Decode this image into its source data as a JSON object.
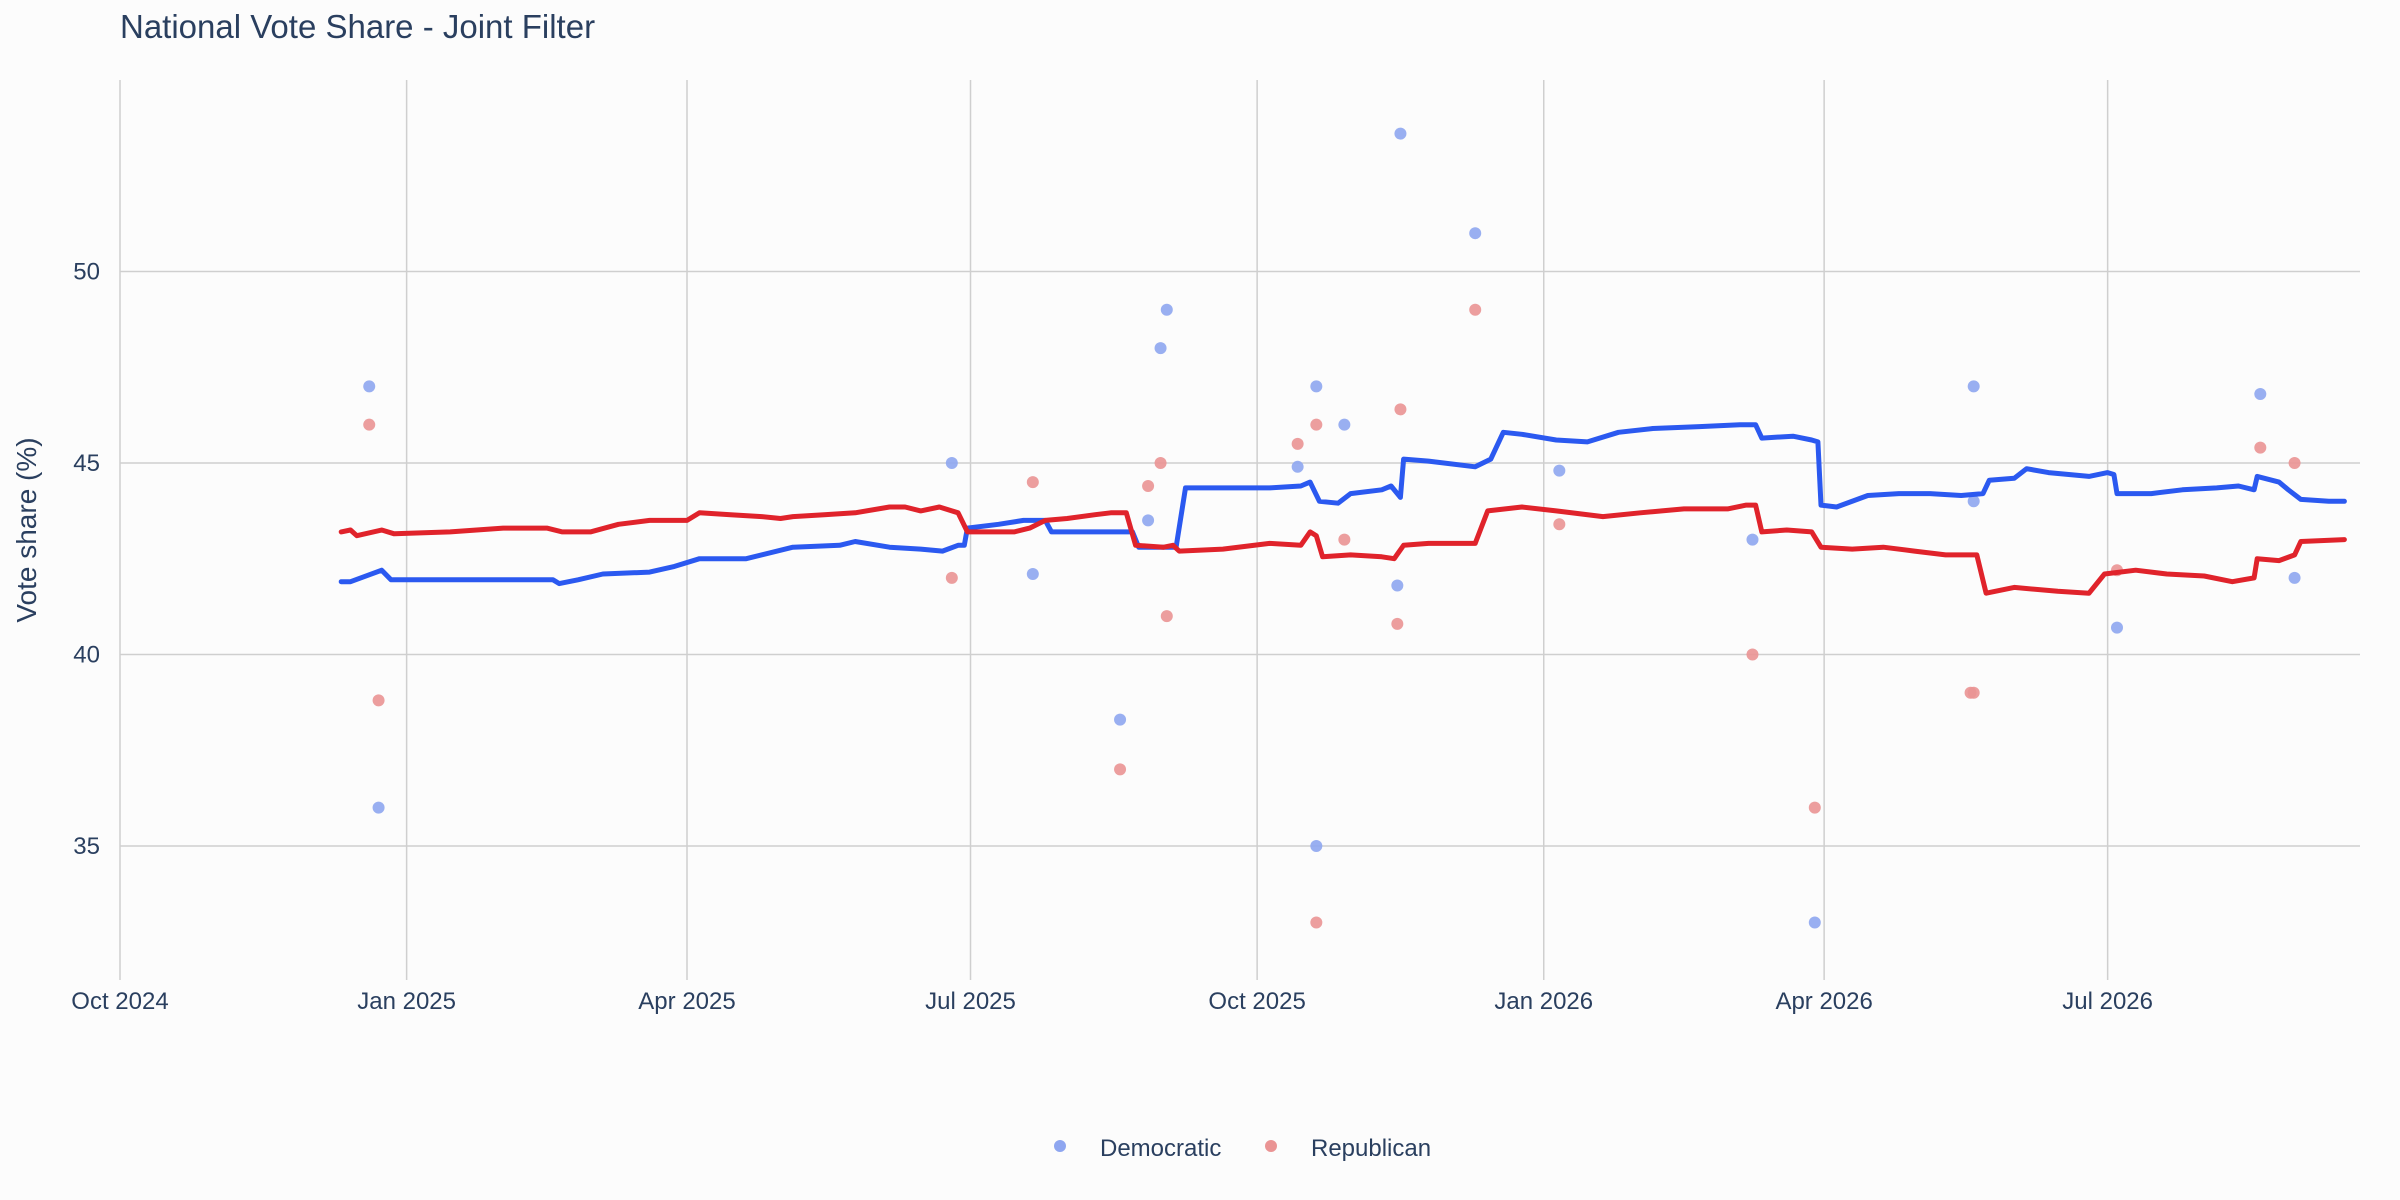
{
  "chart_data": {
    "type": "line",
    "title": "National Vote Share - Joint Filter",
    "xlabel": "",
    "ylabel": "Vote share (%)",
    "xlim": [
      "2024-10-01",
      "2026-09-20"
    ],
    "ylim": [
      31.5,
      55
    ],
    "grid": true,
    "legend_position": "bottom-center",
    "x_ticks": [
      {
        "date": "2024-10-01",
        "label": "Oct 2024"
      },
      {
        "date": "2025-01-01",
        "label": "Jan 2025"
      },
      {
        "date": "2025-04-01",
        "label": "Apr 2025"
      },
      {
        "date": "2025-07-01",
        "label": "Jul 2025"
      },
      {
        "date": "2025-10-01",
        "label": "Oct 2025"
      },
      {
        "date": "2026-01-01",
        "label": "Jan 2026"
      },
      {
        "date": "2026-04-01",
        "label": "Apr 2026"
      },
      {
        "date": "2026-07-01",
        "label": "Jul 2026"
      }
    ],
    "y_ticks": [
      35,
      40,
      45,
      50
    ],
    "series": [
      {
        "name": "Democratic",
        "color": "#2b59f0",
        "marker_color": "#8ea6f0",
        "trend": [
          [
            "2024-12-11",
            41.9
          ],
          [
            "2024-12-14",
            41.9
          ],
          [
            "2024-12-24",
            42.2
          ],
          [
            "2024-12-27",
            41.95
          ],
          [
            "2025-01-15",
            41.95
          ],
          [
            "2025-02-01",
            41.95
          ],
          [
            "2025-02-17",
            41.95
          ],
          [
            "2025-02-19",
            41.85
          ],
          [
            "2025-02-25",
            41.95
          ],
          [
            "2025-03-05",
            42.1
          ],
          [
            "2025-03-20",
            42.15
          ],
          [
            "2025-03-28",
            42.3
          ],
          [
            "2025-04-05",
            42.5
          ],
          [
            "2025-04-20",
            42.5
          ],
          [
            "2025-05-05",
            42.8
          ],
          [
            "2025-05-20",
            42.85
          ],
          [
            "2025-05-25",
            42.95
          ],
          [
            "2025-06-05",
            42.8
          ],
          [
            "2025-06-15",
            42.75
          ],
          [
            "2025-06-22",
            42.7
          ],
          [
            "2025-06-27",
            42.85
          ],
          [
            "2025-06-29",
            42.85
          ],
          [
            "2025-06-30",
            43.3
          ],
          [
            "2025-07-10",
            43.4
          ],
          [
            "2025-07-18",
            43.5
          ],
          [
            "2025-07-25",
            43.5
          ],
          [
            "2025-07-27",
            43.2
          ],
          [
            "2025-08-05",
            43.2
          ],
          [
            "2025-08-15",
            43.2
          ],
          [
            "2025-08-22",
            43.2
          ],
          [
            "2025-08-24",
            42.8
          ],
          [
            "2025-09-01",
            42.8
          ],
          [
            "2025-09-05",
            42.8
          ],
          [
            "2025-09-08",
            44.35
          ],
          [
            "2025-09-20",
            44.35
          ],
          [
            "2025-10-05",
            44.35
          ],
          [
            "2025-10-15",
            44.4
          ],
          [
            "2025-10-18",
            44.5
          ],
          [
            "2025-10-21",
            44.0
          ],
          [
            "2025-10-27",
            43.95
          ],
          [
            "2025-10-31",
            44.2
          ],
          [
            "2025-11-10",
            44.3
          ],
          [
            "2025-11-13",
            44.4
          ],
          [
            "2025-11-16",
            44.1
          ],
          [
            "2025-11-17",
            45.1
          ],
          [
            "2025-11-25",
            45.05
          ],
          [
            "2025-12-10",
            44.9
          ],
          [
            "2025-12-15",
            45.1
          ],
          [
            "2025-12-19",
            45.8
          ],
          [
            "2025-12-25",
            45.75
          ],
          [
            "2026-01-05",
            45.6
          ],
          [
            "2026-01-15",
            45.55
          ],
          [
            "2026-01-25",
            45.8
          ],
          [
            "2026-02-05",
            45.9
          ],
          [
            "2026-02-20",
            45.95
          ],
          [
            "2026-03-05",
            46.0
          ],
          [
            "2026-03-10",
            46.0
          ],
          [
            "2026-03-12",
            45.65
          ],
          [
            "2026-03-22",
            45.7
          ],
          [
            "2026-03-28",
            45.6
          ],
          [
            "2026-03-30",
            45.55
          ],
          [
            "2026-03-31",
            43.9
          ],
          [
            "2026-04-05",
            43.85
          ],
          [
            "2026-04-15",
            44.15
          ],
          [
            "2026-04-25",
            44.2
          ],
          [
            "2026-05-05",
            44.2
          ],
          [
            "2026-05-15",
            44.15
          ],
          [
            "2026-05-22",
            44.2
          ],
          [
            "2026-05-24",
            44.55
          ],
          [
            "2026-06-01",
            44.6
          ],
          [
            "2026-06-05",
            44.85
          ],
          [
            "2026-06-12",
            44.75
          ],
          [
            "2026-06-25",
            44.65
          ],
          [
            "2026-07-01",
            44.75
          ],
          [
            "2026-07-03",
            44.7
          ],
          [
            "2026-07-04",
            44.2
          ],
          [
            "2026-07-15",
            44.2
          ],
          [
            "2026-07-25",
            44.3
          ],
          [
            "2026-08-05",
            44.35
          ],
          [
            "2026-08-12",
            44.4
          ],
          [
            "2026-08-17",
            44.3
          ],
          [
            "2026-08-18",
            44.65
          ],
          [
            "2026-08-25",
            44.5
          ],
          [
            "2026-08-28",
            44.3
          ],
          [
            "2026-09-01",
            44.05
          ],
          [
            "2026-09-10",
            44.0
          ],
          [
            "2026-09-15",
            44.0
          ]
        ],
        "polls": [
          [
            "2024-12-20",
            47.0
          ],
          [
            "2024-12-23",
            36.0
          ],
          [
            "2025-06-25",
            45.0
          ],
          [
            "2025-07-21",
            42.1
          ],
          [
            "2025-08-18",
            38.3
          ],
          [
            "2025-08-27",
            43.5
          ],
          [
            "2025-08-31",
            48.0
          ],
          [
            "2025-09-02",
            49.0
          ],
          [
            "2025-10-14",
            44.9
          ],
          [
            "2025-10-20",
            47.0
          ],
          [
            "2025-10-20",
            35.0
          ],
          [
            "2025-10-29",
            46.0
          ],
          [
            "2025-11-15",
            41.8
          ],
          [
            "2025-11-16",
            53.6
          ],
          [
            "2025-12-10",
            51.0
          ],
          [
            "2026-01-06",
            44.8
          ],
          [
            "2026-03-09",
            43.0
          ],
          [
            "2026-03-29",
            33.0
          ],
          [
            "2026-05-19",
            47.0
          ],
          [
            "2026-05-19",
            44.0
          ],
          [
            "2026-07-04",
            40.7
          ],
          [
            "2026-08-19",
            46.8
          ],
          [
            "2026-08-30",
            42.0
          ]
        ]
      },
      {
        "name": "Republican",
        "color": "#e0232b",
        "marker_color": "#ea9494",
        "trend": [
          [
            "2024-12-11",
            43.2
          ],
          [
            "2024-12-14",
            43.25
          ],
          [
            "2024-12-16",
            43.1
          ],
          [
            "2024-12-24",
            43.25
          ],
          [
            "2024-12-28",
            43.15
          ],
          [
            "2025-01-15",
            43.2
          ],
          [
            "2025-02-01",
            43.3
          ],
          [
            "2025-02-15",
            43.3
          ],
          [
            "2025-02-20",
            43.2
          ],
          [
            "2025-03-01",
            43.2
          ],
          [
            "2025-03-10",
            43.4
          ],
          [
            "2025-03-20",
            43.5
          ],
          [
            "2025-04-01",
            43.5
          ],
          [
            "2025-04-05",
            43.7
          ],
          [
            "2025-04-15",
            43.65
          ],
          [
            "2025-04-25",
            43.6
          ],
          [
            "2025-05-01",
            43.55
          ],
          [
            "2025-05-05",
            43.6
          ],
          [
            "2025-05-15",
            43.65
          ],
          [
            "2025-05-25",
            43.7
          ],
          [
            "2025-06-05",
            43.85
          ],
          [
            "2025-06-10",
            43.85
          ],
          [
            "2025-06-15",
            43.75
          ],
          [
            "2025-06-21",
            43.85
          ],
          [
            "2025-06-27",
            43.7
          ],
          [
            "2025-06-30",
            43.2
          ],
          [
            "2025-07-10",
            43.2
          ],
          [
            "2025-07-15",
            43.2
          ],
          [
            "2025-07-20",
            43.3
          ],
          [
            "2025-07-25",
            43.5
          ],
          [
            "2025-08-01",
            43.55
          ],
          [
            "2025-08-10",
            43.65
          ],
          [
            "2025-08-15",
            43.7
          ],
          [
            "2025-08-20",
            43.7
          ],
          [
            "2025-08-23",
            42.85
          ],
          [
            "2025-09-01",
            42.8
          ],
          [
            "2025-09-04",
            42.85
          ],
          [
            "2025-09-06",
            42.7
          ],
          [
            "2025-09-20",
            42.75
          ],
          [
            "2025-10-05",
            42.9
          ],
          [
            "2025-10-15",
            42.85
          ],
          [
            "2025-10-18",
            43.2
          ],
          [
            "2025-10-20",
            43.1
          ],
          [
            "2025-10-22",
            42.55
          ],
          [
            "2025-10-31",
            42.6
          ],
          [
            "2025-11-10",
            42.55
          ],
          [
            "2025-11-14",
            42.5
          ],
          [
            "2025-11-17",
            42.85
          ],
          [
            "2025-11-25",
            42.9
          ],
          [
            "2025-12-05",
            42.9
          ],
          [
            "2025-12-10",
            42.9
          ],
          [
            "2025-12-14",
            43.75
          ],
          [
            "2025-12-25",
            43.85
          ],
          [
            "2026-01-05",
            43.75
          ],
          [
            "2026-01-20",
            43.6
          ],
          [
            "2026-02-01",
            43.7
          ],
          [
            "2026-02-15",
            43.8
          ],
          [
            "2026-03-01",
            43.8
          ],
          [
            "2026-03-07",
            43.9
          ],
          [
            "2026-03-10",
            43.9
          ],
          [
            "2026-03-12",
            43.2
          ],
          [
            "2026-03-20",
            43.25
          ],
          [
            "2026-03-28",
            43.2
          ],
          [
            "2026-03-31",
            42.8
          ],
          [
            "2026-04-10",
            42.75
          ],
          [
            "2026-04-20",
            42.8
          ],
          [
            "2026-04-30",
            42.7
          ],
          [
            "2026-05-10",
            42.6
          ],
          [
            "2026-05-20",
            42.6
          ],
          [
            "2026-05-23",
            41.6
          ],
          [
            "2026-06-01",
            41.75
          ],
          [
            "2026-06-15",
            41.65
          ],
          [
            "2026-06-25",
            41.6
          ],
          [
            "2026-06-30",
            42.1
          ],
          [
            "2026-07-10",
            42.2
          ],
          [
            "2026-07-20",
            42.1
          ],
          [
            "2026-08-01",
            42.05
          ],
          [
            "2026-08-10",
            41.9
          ],
          [
            "2026-08-17",
            42.0
          ],
          [
            "2026-08-18",
            42.5
          ],
          [
            "2026-08-25",
            42.45
          ],
          [
            "2026-08-30",
            42.6
          ],
          [
            "2026-09-01",
            42.95
          ],
          [
            "2026-09-15",
            43.0
          ]
        ],
        "polls": [
          [
            "2024-12-20",
            46.0
          ],
          [
            "2024-12-23",
            38.8
          ],
          [
            "2025-06-25",
            42.0
          ],
          [
            "2025-07-21",
            44.5
          ],
          [
            "2025-08-18",
            37.0
          ],
          [
            "2025-08-27",
            44.4
          ],
          [
            "2025-08-31",
            45.0
          ],
          [
            "2025-09-02",
            41.0
          ],
          [
            "2025-10-14",
            45.5
          ],
          [
            "2025-10-20",
            46.0
          ],
          [
            "2025-10-20",
            33.0
          ],
          [
            "2025-10-29",
            43.0
          ],
          [
            "2025-11-15",
            40.8
          ],
          [
            "2025-11-16",
            46.4
          ],
          [
            "2025-12-10",
            49.0
          ],
          [
            "2026-01-06",
            43.4
          ],
          [
            "2026-03-09",
            40.0
          ],
          [
            "2026-03-29",
            36.0
          ],
          [
            "2026-05-18",
            39.0
          ],
          [
            "2026-05-19",
            39.0
          ],
          [
            "2026-07-04",
            42.2
          ],
          [
            "2026-08-19",
            45.4
          ],
          [
            "2026-08-30",
            45.0
          ]
        ]
      }
    ]
  }
}
